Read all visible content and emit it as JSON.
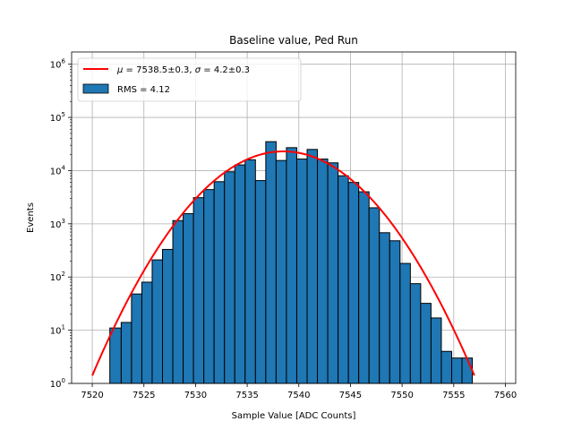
{
  "chart_data": {
    "type": "bar",
    "title": "Baseline value, Ped Run",
    "xlabel": "Sample Value [ADC Counts]",
    "ylabel": "Events",
    "xlim": [
      7518,
      7561
    ],
    "ylim": [
      1,
      1700000
    ],
    "yscale": "log",
    "grid": true,
    "legend_placement": "top-left",
    "xticks": [
      7520,
      7525,
      7530,
      7535,
      7540,
      7545,
      7550,
      7555,
      7560
    ],
    "yticks": [
      {
        "value": 1,
        "base": "10",
        "exp": "0"
      },
      {
        "value": 10,
        "base": "10",
        "exp": "1"
      },
      {
        "value": 100,
        "base": "10",
        "exp": "2"
      },
      {
        "value": 1000,
        "base": "10",
        "exp": "3"
      },
      {
        "value": 10000,
        "base": "10",
        "exp": "4"
      },
      {
        "value": 100000,
        "base": "10",
        "exp": "5"
      },
      {
        "value": 1000000,
        "base": "10",
        "exp": "6"
      }
    ],
    "histogram": {
      "name": "RMS = 4.12",
      "color": "#1f77b4",
      "edge_color": "#000000",
      "bin_edges": [
        7521.7,
        7522.8,
        7523.8,
        7524.8,
        7525.8,
        7526.8,
        7527.8,
        7528.8,
        7529.8,
        7530.8,
        7531.8,
        7532.8,
        7533.8,
        7534.8,
        7535.8,
        7536.8,
        7537.8,
        7538.8,
        7539.8,
        7540.8,
        7541.8,
        7542.8,
        7543.8,
        7544.8,
        7545.8,
        7546.8,
        7547.8,
        7548.8,
        7549.8,
        7550.8,
        7551.8,
        7552.8,
        7553.8,
        7554.8,
        7555.8,
        7556.8,
        7557.8
      ],
      "counts": [
        11,
        14,
        48,
        80,
        210,
        330,
        1150,
        1550,
        3100,
        4400,
        6200,
        9500,
        12800,
        16000,
        6500,
        35000,
        15500,
        27000,
        16500,
        25000,
        16500,
        14000,
        8000,
        6000,
        4000,
        2000,
        680,
        480,
        180,
        75,
        32,
        17,
        4,
        3,
        3,
        1
      ]
    },
    "fit": {
      "name": "μ = 7538.5±0.3, σ = 4.2±0.3",
      "name_mu": "μ",
      "name_rest1": " = 7538.5±0.3, ",
      "name_sigma": "σ",
      "name_rest2": " = 4.2±0.3",
      "color": "#ff0000",
      "mu": 7538.5,
      "sigma": 4.2,
      "amplitude": 23000,
      "x_range": [
        7520,
        7557
      ]
    }
  }
}
